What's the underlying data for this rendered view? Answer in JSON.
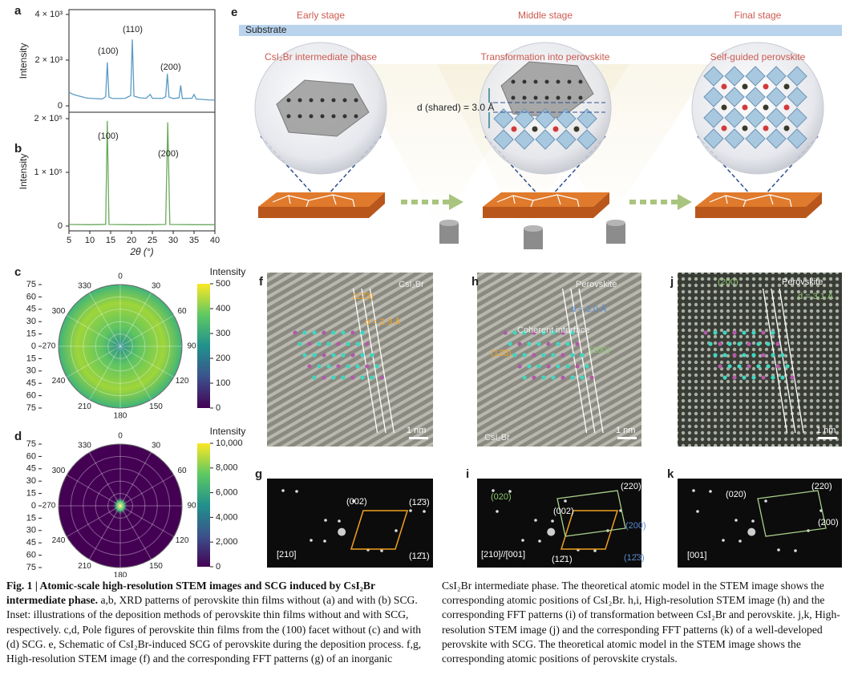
{
  "chart_data": [
    {
      "type": "line",
      "panel": "a",
      "ylabel": "Intensity",
      "x": [
        5,
        6,
        7,
        8,
        9,
        10,
        11,
        12,
        13,
        13.8,
        14.2,
        14.6,
        15.5,
        17,
        18.5,
        19.8,
        20.2,
        20.6,
        22,
        23.5,
        24.5,
        25,
        26,
        27.5,
        28.2,
        28.6,
        29,
        30,
        31.4,
        31.8,
        32.2,
        33.5,
        34.5,
        35,
        35.5,
        37,
        38.5,
        40
      ],
      "series": [
        {
          "color": "#5b9bc4",
          "values": [
            600,
            500,
            450,
            400,
            350,
            330,
            320,
            310,
            300,
            400,
            1900,
            380,
            320,
            320,
            330,
            450,
            2900,
            420,
            350,
            330,
            500,
            330,
            330,
            330,
            400,
            1400,
            380,
            320,
            350,
            900,
            320,
            330,
            330,
            500,
            300,
            280,
            260,
            250
          ]
        }
      ],
      "xlim": [
        5,
        40
      ],
      "ylim": [
        -280,
        4210
      ],
      "yticks": [
        0,
        {
          "value": 2000,
          "label": "2 × 10³"
        },
        {
          "value": 4000,
          "label": "4 × 10³"
        }
      ],
      "annotations": [
        "(100)",
        "(110)",
        "(200)"
      ]
    },
    {
      "type": "line",
      "panel": "b",
      "ylabel": "Intensity",
      "xlabel": "2θ (°)",
      "x": [
        5,
        10,
        13.8,
        14.2,
        14.6,
        20,
        25,
        28.2,
        28.7,
        29.2,
        35,
        40
      ],
      "series": [
        {
          "color": "#6aaa5b",
          "values": [
            3000,
            2500,
            3000,
            196000,
            3000,
            2500,
            2500,
            3000,
            193000,
            3000,
            2500,
            2500
          ]
        }
      ],
      "xlim": [
        5,
        40
      ],
      "ylim": [
        -9000,
        212000
      ],
      "xticks": [
        5,
        10,
        15,
        20,
        25,
        30,
        35,
        40
      ],
      "yticks": [
        0,
        {
          "value": 100000,
          "label": "1 × 10⁵"
        },
        {
          "value": 200000,
          "label": "2 × 10⁵"
        }
      ],
      "annotations": [
        "(100)",
        "(200)"
      ]
    },
    {
      "type": "polar",
      "panel": "c",
      "rlim": [
        0,
        75
      ],
      "rticks": [
        0,
        15,
        30,
        45,
        60,
        75
      ],
      "thetaticks": [
        0,
        30,
        60,
        90,
        120,
        150,
        180,
        210,
        240,
        270,
        300,
        330
      ],
      "colorbar_label": "Intensity",
      "clim": [
        0,
        500
      ],
      "cticks": [
        0,
        100,
        200,
        300,
        400,
        500
      ],
      "cmap": "viridis"
    },
    {
      "type": "polar",
      "panel": "d",
      "rlim": [
        0,
        75
      ],
      "rticks": [
        0,
        15,
        30,
        45,
        60,
        75
      ],
      "thetaticks": [
        0,
        30,
        60,
        90,
        120,
        150,
        180,
        210,
        240,
        270,
        300,
        330
      ],
      "colorbar_label": "Intensity",
      "clim": [
        0,
        10000
      ],
      "cticks": [
        0,
        {
          "value": 2000,
          "label": "2,000"
        },
        {
          "value": 4000,
          "label": "4,000"
        },
        {
          "value": 6000,
          "label": "6,000"
        },
        {
          "value": 8000,
          "label": "8,000"
        },
        {
          "value": 10000,
          "label": "10,000"
        }
      ],
      "cmap": "viridis"
    }
  ],
  "schematic": {
    "panel": "e",
    "stages": [
      "Early stage",
      "Middle stage",
      "Final stage"
    ],
    "substrate": "Substrate",
    "phases": [
      "CsI₂Br intermediate phase",
      "Transformation into perovskite",
      "Self-guided perovskite"
    ],
    "spacing": "d (shared) = 3.0 Å"
  },
  "images": [
    {
      "panel": "f",
      "labels": [
        "CsI₂Br",
        "(12̄3)",
        "d = 2.9 Å",
        "1 nm"
      ]
    },
    {
      "panel": "h",
      "labels": [
        "Perovskite",
        "d = 3.0 Å",
        "Coherent interface",
        "(12̄3)",
        "(200)",
        "CsI₂Br",
        "1 nm"
      ]
    },
    {
      "panel": "j",
      "labels": [
        "(200)",
        "Perovskite",
        "d = 3.1 Å",
        "1 nm"
      ]
    },
    {
      "panel": "g",
      "labels": [
        "(002)",
        "(12̄3)",
        "(12̄1)",
        "[210]"
      ]
    },
    {
      "panel": "i",
      "labels": [
        "(020)",
        "(220)",
        "(002)",
        "(200)",
        "(12̄3)",
        "(12̄1)",
        "[210]//[001]"
      ]
    },
    {
      "panel": "k",
      "labels": [
        "(020)",
        "(220)",
        "(200)",
        "[001]"
      ]
    }
  ],
  "caption": {
    "title": "Fig. 1 | Atomic-scale high-resolution STEM images and SCG induced by CsI₂Br intermediate phase.",
    "text": "a,b, XRD patterns of perovskite thin films without (a) and with (b) SCG. Inset: illustrations of the deposition methods of perovskite thin films without and with SCG, respectively. c,d, Pole figures of perovskite thin films from the (100) facet without (c) and with (d) SCG. e, Schematic of CsI₂Br-induced SCG of perovskite during the deposition process. f,g, High-resolution STEM image (f) and the corresponding FFT patterns (g) of an inorganic CsI₂Br intermediate phase. The theoretical atomic model in the STEM image shows the corresponding atomic positions of CsI₂Br. h,i, High-resolution STEM image (h) and the corresponding FFT patterns (i) of transformation between CsI₂Br and perovskite. j,k, High-resolution STEM image (j) and the corresponding FFT patterns (k) of a well-developed perovskite with SCG. The theoretical atomic model in the STEM image shows the corresponding atomic positions of perovskite crystals."
  }
}
